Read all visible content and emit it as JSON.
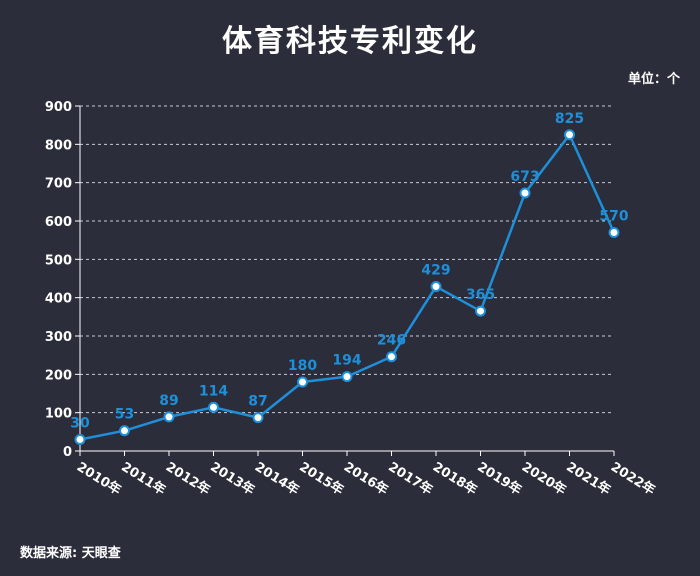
{
  "title": "体育科技专利变化",
  "unit_label": "单位：个",
  "source_label": "数据来源: 天眼查",
  "colors": {
    "background": "#2b2d3b",
    "line": "#1e8fd9",
    "text": "#ffffff"
  },
  "chart_data": {
    "type": "line",
    "categories": [
      "2010年",
      "2011年",
      "2012年",
      "2013年",
      "2014年",
      "2015年",
      "2016年",
      "2017年",
      "2018年",
      "2019年",
      "2020年",
      "2021年",
      "2022年"
    ],
    "series": [
      {
        "values": [
          30,
          53,
          89,
          114,
          87,
          180,
          194,
          246,
          429,
          365,
          673,
          825,
          570
        ]
      }
    ],
    "ylim": [
      0,
      900
    ],
    "yticks": [
      0,
      100,
      200,
      300,
      400,
      500,
      600,
      700,
      800,
      900
    ],
    "grid": true,
    "data_labels": true
  }
}
